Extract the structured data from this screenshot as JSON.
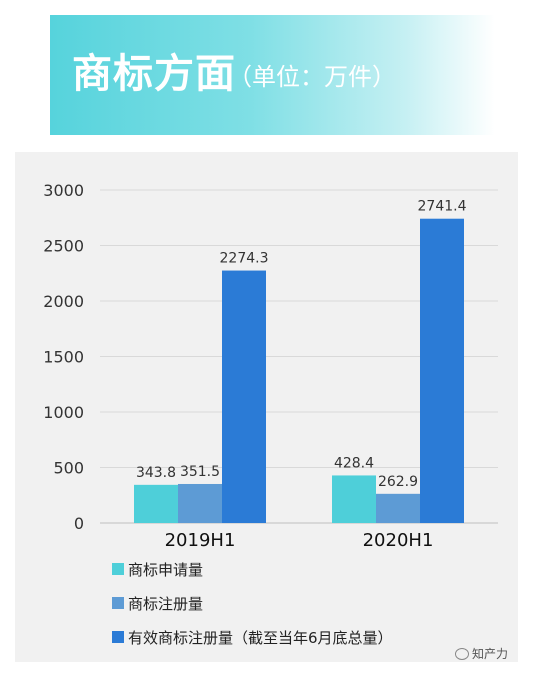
{
  "header": {
    "title": "商标方面",
    "unit": "（单位：万件）"
  },
  "chart_data": {
    "type": "bar",
    "categories": [
      "2019H1",
      "2020H1"
    ],
    "series": [
      {
        "name": "商标申请量",
        "values": [
          343.8,
          428.4
        ],
        "labels": [
          "343.8",
          "428.4"
        ],
        "color": "#4ecfd9"
      },
      {
        "name": "商标注册量",
        "values": [
          351.5,
          262.9
        ],
        "labels": [
          "351.5",
          "262.9"
        ],
        "color": "#5d9bd5"
      },
      {
        "name": "有效商标注册量（截至当年6月底总量）",
        "values": [
          2274.3,
          2741.4
        ],
        "labels": [
          "2274.3",
          "2741.4"
        ],
        "color": "#2b7bd6"
      }
    ],
    "ylim": [
      0,
      3000
    ],
    "yticks": [
      0,
      500,
      1000,
      1500,
      2000,
      2500,
      3000
    ],
    "ytick_labels": [
      "0",
      "500",
      "1000",
      "1500",
      "2000",
      "2500",
      "3000"
    ],
    "grid": true,
    "legend_position": "bottom"
  },
  "watermark": "知产力"
}
